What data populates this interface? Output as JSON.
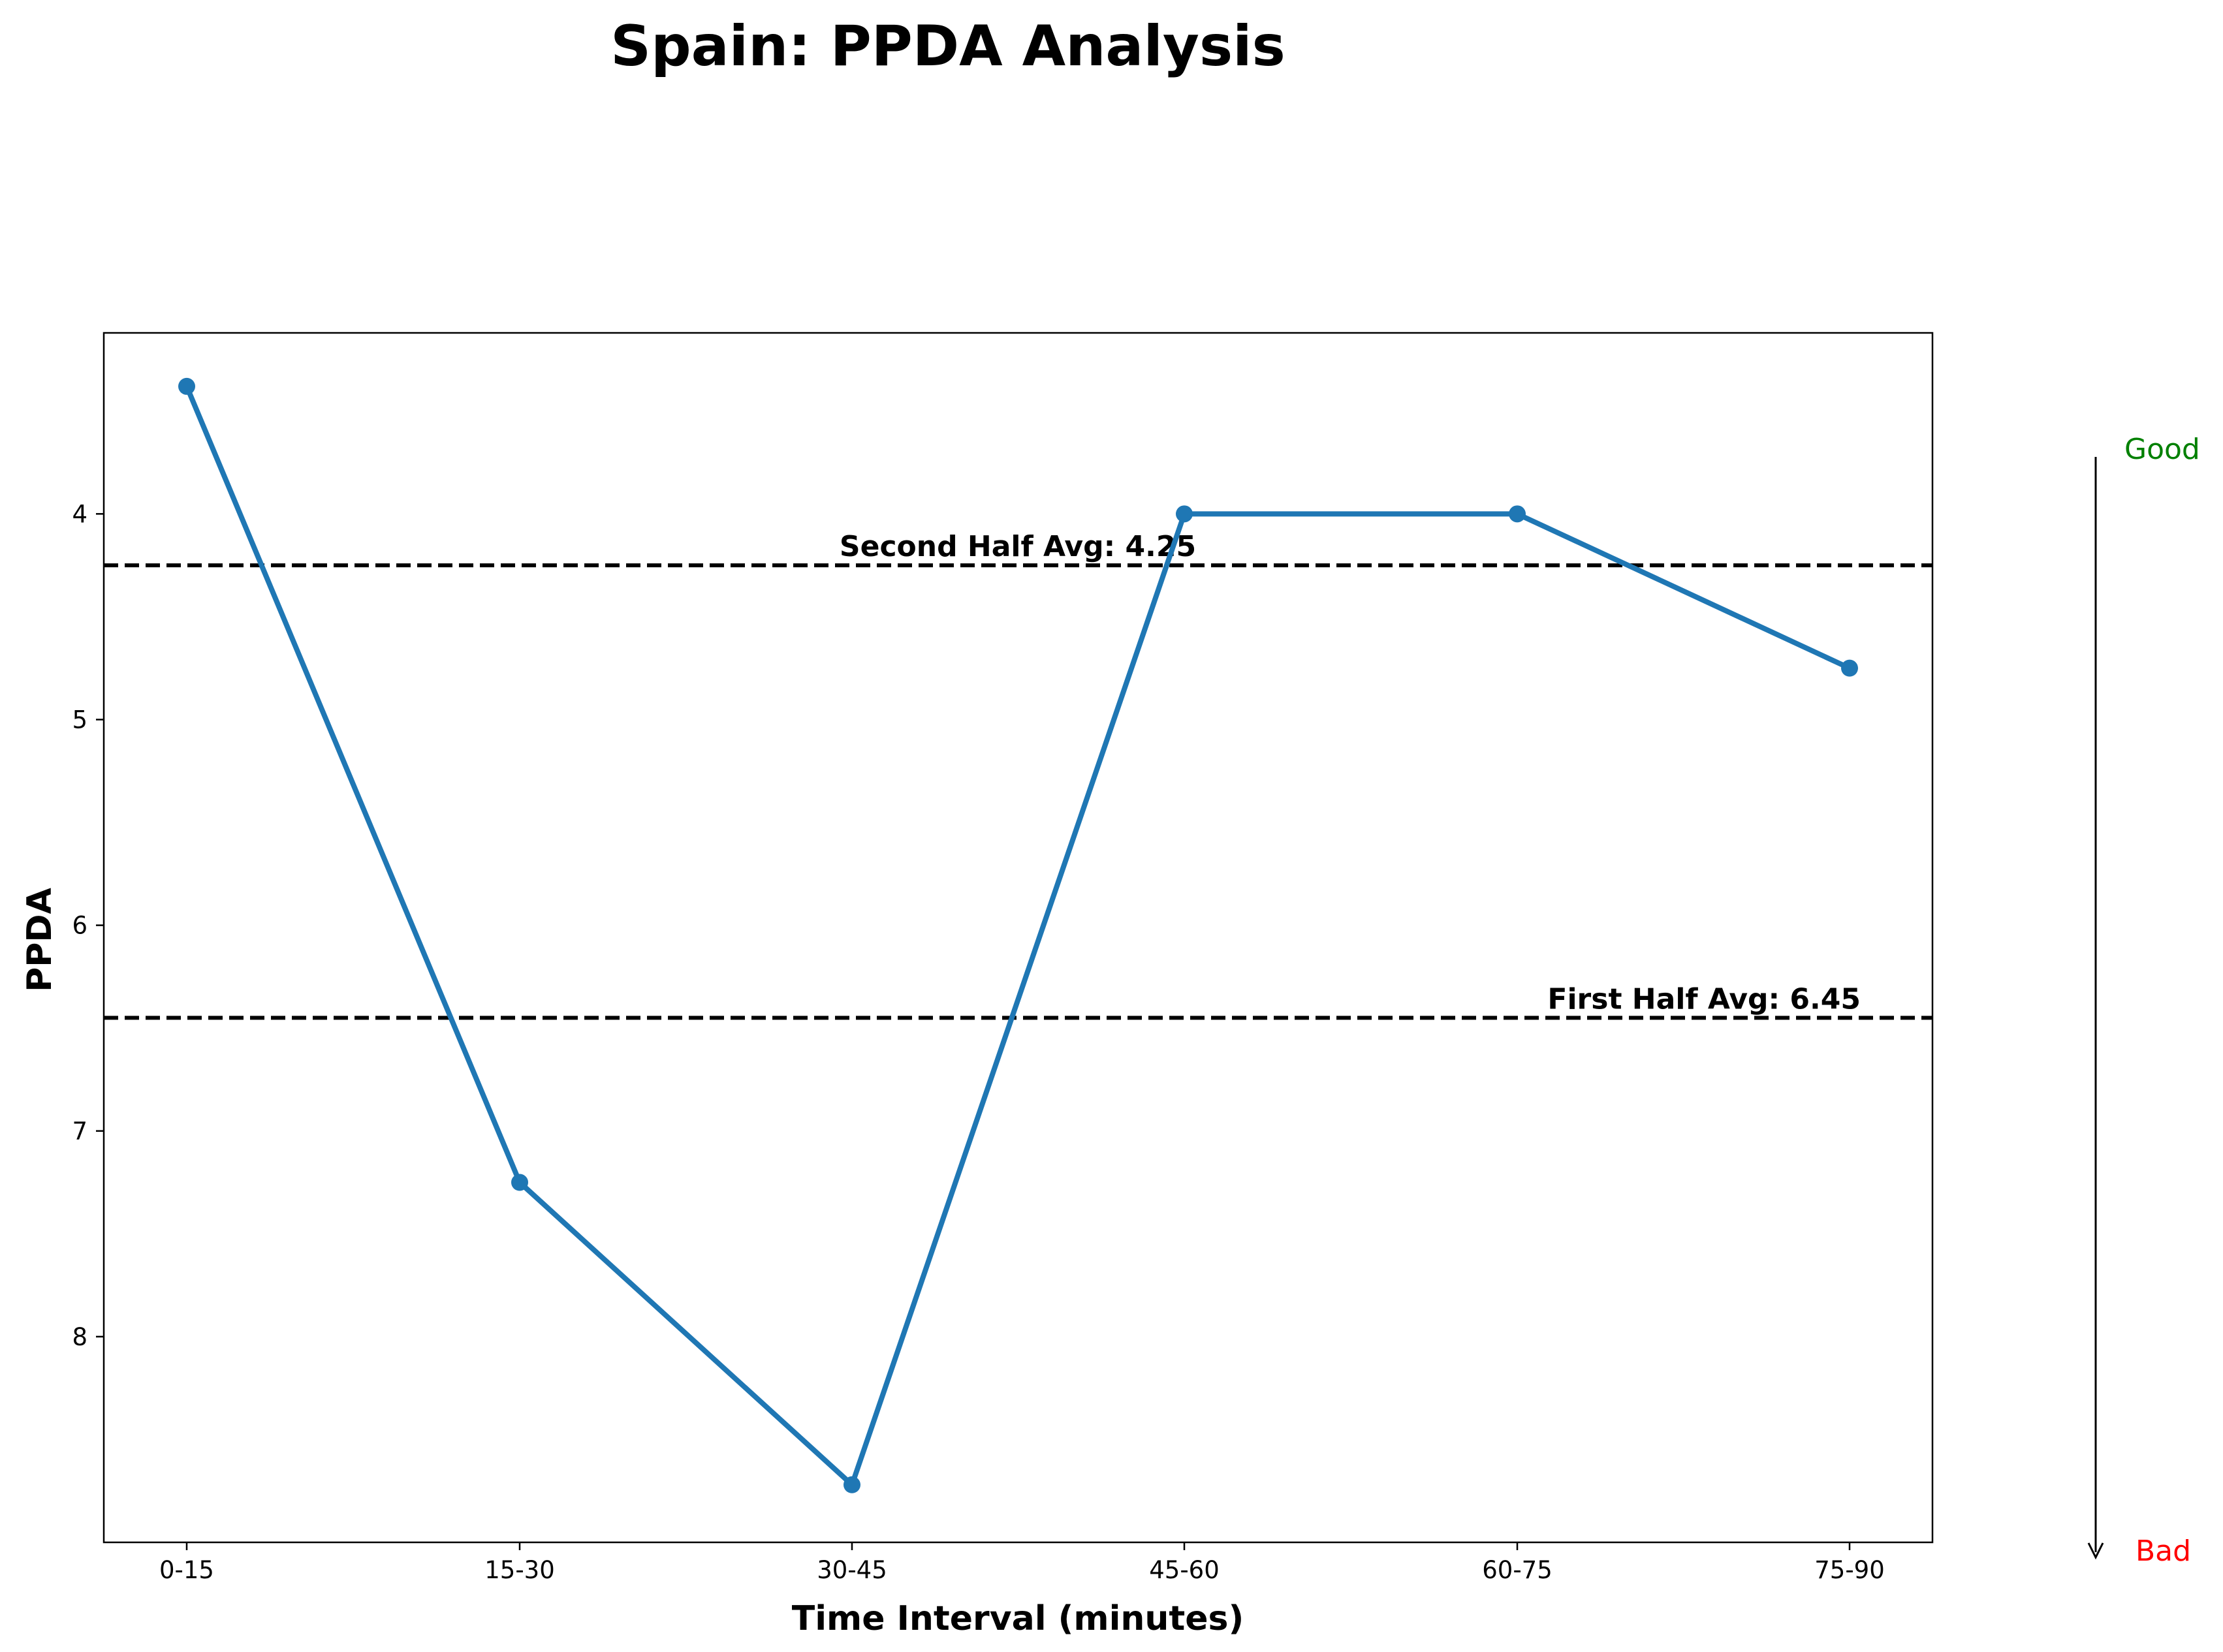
{
  "chart_data": {
    "type": "line",
    "title": "Spain: PPDA Analysis",
    "xlabel": "Time Interval (minutes)",
    "ylabel": "PPDA",
    "categories": [
      "0-15",
      "15-30",
      "30-45",
      "45-60",
      "60-75",
      "75-90"
    ],
    "values": [
      3.38,
      7.25,
      8.72,
      4.0,
      4.0,
      4.75
    ],
    "ylim": [
      9.0,
      3.12
    ],
    "y_inverted": true,
    "y_ticks": [
      4,
      5,
      6,
      7,
      8
    ],
    "grid": false,
    "line_color": "#1f77b4",
    "reference_lines": [
      {
        "label": "Second Half Avg: 4.25",
        "value": 4.25
      },
      {
        "label": "First Half Avg: 6.45",
        "value": 6.45
      }
    ],
    "direction_indicator": {
      "top_label": "Good",
      "bottom_label": "Bad",
      "top_color": "#008000",
      "bottom_color": "#ff0000"
    }
  }
}
